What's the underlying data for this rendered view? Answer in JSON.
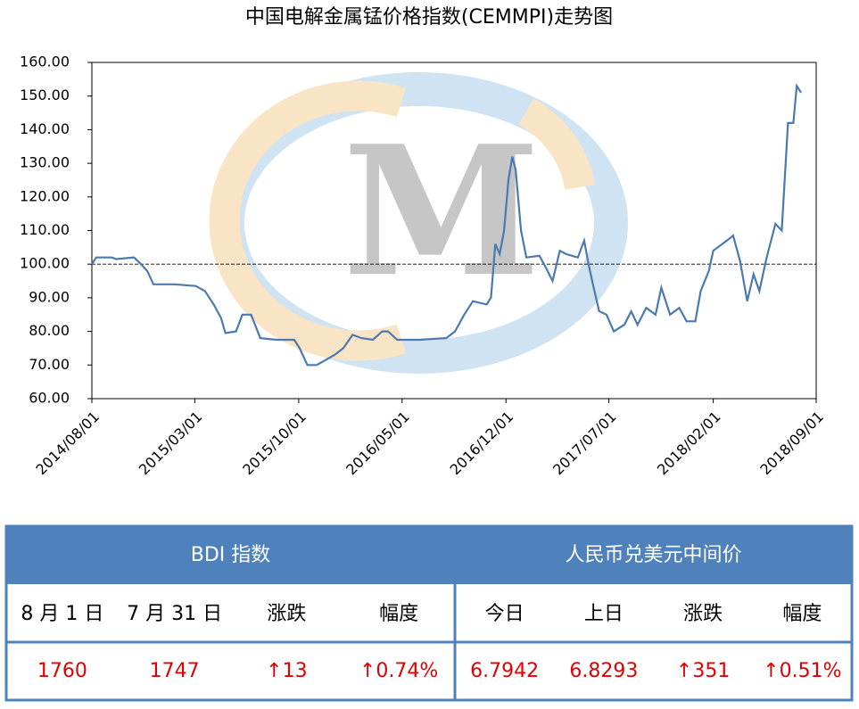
{
  "chart_data": {
    "type": "line",
    "title": "中国电解金属锰价格指数(CEMMPI)走势图",
    "xlim": [
      "2014/08/01",
      "2018/09/01"
    ],
    "xticks": [
      "2014/08/01",
      "2015/03/01",
      "2015/10/01",
      "2016/05/01",
      "2016/12/01",
      "2017/07/01",
      "2018/02/01",
      "2018/09/01"
    ],
    "ylim": [
      60,
      160
    ],
    "yticks": [
      {
        "value": 60,
        "label": "60.00"
      },
      {
        "value": 70,
        "label": "70.00"
      },
      {
        "value": 80,
        "label": "80.00"
      },
      {
        "value": 90,
        "label": "90.00"
      },
      {
        "value": 100,
        "label": "100.00"
      },
      {
        "value": 110,
        "label": "110.00"
      },
      {
        "value": 120,
        "label": "120.00"
      },
      {
        "value": 130,
        "label": "130.00"
      },
      {
        "value": 140,
        "label": "140.00"
      },
      {
        "value": 150,
        "label": "150.00"
      },
      {
        "value": 160,
        "label": "160.00"
      }
    ],
    "reference_line": 100,
    "series": [
      {
        "color": "#4a7ab0",
        "x": [
          "2014/08/01",
          "2014/08/10",
          "2014/09/11",
          "2014/09/20",
          "2014/10/27",
          "2014/11/10",
          "2014/11/23",
          "2014/12/06",
          "2014/12/21",
          "2015/01/17",
          "2015/03/03",
          "2015/03/22",
          "2015/04/09",
          "2015/04/24",
          "2015/05/03",
          "2015/05/25",
          "2015/06/07",
          "2015/06/25",
          "2015/07/14",
          "2015/08/16",
          "2015/09/22",
          "2015/10/03",
          "2015/10/19",
          "2015/11/07",
          "2015/12/14",
          "2016/01/01",
          "2016/01/20",
          "2016/02/07",
          "2016/03/02",
          "2016/03/21",
          "2016/04/02",
          "2016/04/21",
          "2016/06/06",
          "2016/07/31",
          "2016/08/18",
          "2016/09/06",
          "2016/09/24",
          "2016/10/22",
          "2016/10/31",
          "2016/11/09",
          "2016/11/18",
          "2016/11/27",
          "2016/12/06",
          "2016/12/14",
          "2016/12/21",
          "2017/01/01",
          "2017/01/12",
          "2017/02/08",
          "2017/02/21",
          "2017/03/07",
          "2017/03/22",
          "2017/04/04",
          "2017/04/28",
          "2017/05/11",
          "2017/05/20",
          "2017/05/29",
          "2017/06/11",
          "2017/06/26",
          "2017/07/11",
          "2017/08/02",
          "2017/08/16",
          "2017/08/29",
          "2017/09/16",
          "2017/10/05",
          "2017/10/17",
          "2017/11/04",
          "2017/11/23",
          "2017/12/08",
          "2017/12/26",
          "2018/01/06",
          "2018/01/23",
          "2018/02/01",
          "2018/03/01",
          "2018/03/14",
          "2018/03/28",
          "2018/04/12",
          "2018/04/25",
          "2018/05/07",
          "2018/05/22",
          "2018/06/09",
          "2018/06/22",
          "2018/07/05",
          "2018/07/16",
          "2018/07/23",
          "2018/08/01"
        ],
        "values": [
          100,
          102,
          102,
          101.5,
          102,
          100,
          98,
          94,
          94,
          94,
          93.5,
          92,
          88,
          84,
          79.5,
          80,
          85,
          85,
          78,
          77.5,
          77.5,
          75,
          70,
          70,
          73,
          75,
          79,
          78,
          77.5,
          80,
          80,
          77.5,
          77.5,
          78,
          80,
          85,
          89,
          88,
          90,
          106,
          103,
          110,
          125,
          132,
          128,
          110,
          102,
          102.5,
          99,
          95,
          104,
          103,
          102,
          107,
          100,
          94,
          86,
          85,
          80,
          82,
          86,
          82,
          87,
          85,
          93,
          85,
          87,
          83,
          83,
          92,
          98,
          104,
          107,
          108.5,
          101,
          89,
          97,
          92,
          102,
          112,
          110,
          142,
          142,
          153,
          151
        ]
      }
    ]
  },
  "table": {
    "groups": [
      {
        "title": "BDI 指数",
        "headers": [
          "8 月 1 日",
          "7 月 31 日",
          "涨跌",
          "幅度"
        ],
        "values": [
          "1760",
          "1747",
          "↑13",
          "↑0.74%"
        ]
      },
      {
        "title": "人民币兑美元中间价",
        "headers": [
          "今日",
          "上日",
          "涨跌",
          "幅度"
        ],
        "values": [
          "6.7942",
          "6.8293",
          "↑351",
          "↑0.51%"
        ]
      }
    ]
  }
}
